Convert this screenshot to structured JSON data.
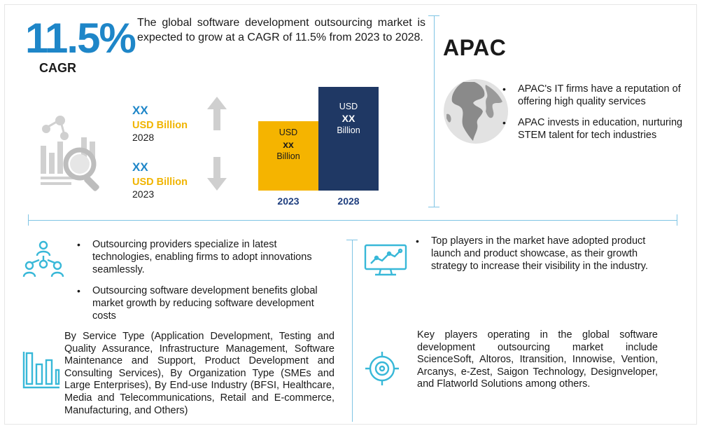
{
  "headline": {
    "cagr_value": "11.5%",
    "cagr_label": "CAGR",
    "description": "The global software development outsourcing market is expected to grow at a CAGR of 11.5% from 2023 to 2028."
  },
  "market_size": {
    "entries": [
      {
        "value": "XX",
        "unit": "USD Billion",
        "year": "2028"
      },
      {
        "value": "XX",
        "unit": "USD Billion",
        "year": "2023"
      }
    ]
  },
  "chart_data": {
    "type": "bar",
    "categories": [
      "2023",
      "2028"
    ],
    "bars": [
      {
        "year": "2023",
        "line1": "USD",
        "line2": "xx",
        "line3": "Billion",
        "color": "#f5b400"
      },
      {
        "year": "2028",
        "line1": "USD",
        "line2": "XX",
        "line3": "Billion",
        "color": "#1f3864"
      }
    ]
  },
  "region": {
    "title": "APAC",
    "points": [
      "APAC's IT firms have a reputation of offering high quality services",
      "APAC invests in education, nurturing STEM talent for tech industries"
    ]
  },
  "drivers": {
    "points": [
      "Outsourcing providers specialize in latest technologies, enabling firms to adopt innovations seamlessly.",
      "Outsourcing software development benefits global market growth by reducing software development costs"
    ]
  },
  "segments": {
    "text": "By Service Type (Application Development, Testing and Quality Assurance, Infrastructure Management, Software Maintenance and Support, Product Development and Consulting Services), By Organization Type (SMEs and Large Enterprises), By End-use Industry (BFSI, Healthcare, Media and Telecommunications, Retail and E-commerce, Manufacturing, and Others)"
  },
  "strategy": {
    "text": "Top players in the market have adopted product launch and product showcase, as their growth strategy to increase their visibility in the industry."
  },
  "players": {
    "text": "Key players operating in the global software development outsourcing market include ScienceSoft, Altoros, Itransition, Innowise, Vention, Arcanys, e-Zest, Saigon Technology, Designveloper, and Flatworld Solutions among others."
  },
  "colors": {
    "accent_blue": "#1e86c8",
    "accent_yellow": "#f0b400",
    "bar_2023": "#f5b400",
    "bar_2028": "#1f3864",
    "divider": "#7fc4e4",
    "icon_teal": "#38b8d8"
  },
  "icons": [
    "analytics-magnifier-icon",
    "arrow-up-icon",
    "arrow-down-icon",
    "globe-icon",
    "network-people-icon",
    "bar-chart-icon",
    "monitor-trend-icon",
    "target-icon"
  ]
}
